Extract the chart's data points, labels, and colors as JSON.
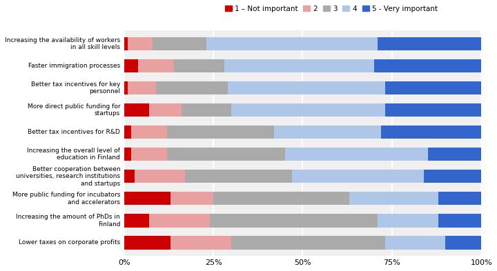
{
  "categories": [
    "Increasing the availability of workers\nin all skill levels",
    "Faster immigration processes",
    "Better tax incentives for key\npersonnel",
    "More direct public funding for\nstartups",
    "Better tax incentives for R&D",
    "Increasing the overall level of\neducation in Finland",
    "Better cooperation between\nuniversities, research institutions\nand startups",
    "More public funding for incubators\nand accelerators",
    "Increasing the amount of PhDs in\nFinland",
    "Lower taxes on corporate profits"
  ],
  "segments": [
    [
      1,
      7,
      15,
      48,
      29
    ],
    [
      4,
      10,
      14,
      42,
      30
    ],
    [
      1,
      8,
      20,
      44,
      27
    ],
    [
      7,
      9,
      14,
      43,
      27
    ],
    [
      2,
      10,
      30,
      30,
      28
    ],
    [
      2,
      10,
      33,
      40,
      15
    ],
    [
      3,
      14,
      30,
      37,
      16
    ],
    [
      13,
      12,
      38,
      25,
      12
    ],
    [
      7,
      17,
      47,
      17,
      12
    ],
    [
      13,
      17,
      43,
      17,
      10
    ]
  ],
  "colors": [
    "#cc0000",
    "#e8a0a0",
    "#aaaaaa",
    "#aec6e8",
    "#3366cc"
  ],
  "legend_labels": [
    "1 – Not important",
    "2",
    "3",
    "4",
    "5 - Very important"
  ],
  "background_color": "#f0f0f0",
  "bar_height": 0.6,
  "grid_color": "#ffffff",
  "figsize": [
    7.2,
    3.93
  ],
  "dpi": 100
}
